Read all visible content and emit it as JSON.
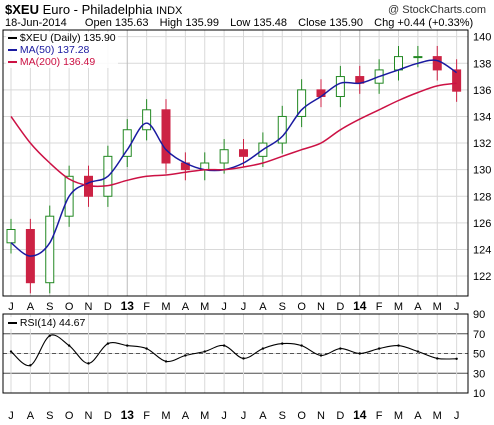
{
  "header": {
    "symbol": "$XEU",
    "name": "Euro - Philadelphia",
    "exchange": "INDX",
    "watermark": "@ StockCharts.com",
    "date": "18-Jun-2014",
    "open_label": "Open",
    "open": "135.63",
    "high_label": "High",
    "high": "135.99",
    "low_label": "Low",
    "low": "135.48",
    "close_label": "Close",
    "close": "135.90",
    "chg_label": "Chg",
    "chg": "+0.44 (+0.33%)"
  },
  "legend": {
    "main": "$XEU (Daily) 135.90",
    "ma50": "MA(50) 137.28",
    "ma200": "MA(200) 136.49",
    "rsi": "RSI(14) 44.67"
  },
  "colors": {
    "up": "#228822",
    "down": "#cc2244",
    "ma50": "#1a1aa0",
    "ma200": "#cc1144",
    "rsi": "#000000",
    "grid": "#d9d9d9",
    "frame": "#000000"
  },
  "chart_data": [
    {
      "type": "candlestick",
      "title": "$XEU (Daily) 135.90",
      "x": [
        "2012-07-01",
        "2012-08-01",
        "2012-09-01",
        "2012-10-01",
        "2012-11-01",
        "2012-12-01",
        "2013-01-01",
        "2013-02-01",
        "2013-03-01",
        "2013-04-01",
        "2013-05-01",
        "2013-06-01",
        "2013-07-01",
        "2013-08-01",
        "2013-09-01",
        "2013-10-01",
        "2013-11-01",
        "2013-12-01",
        "2014-01-01",
        "2014-02-01",
        "2014-03-01",
        "2014-04-01",
        "2014-05-01",
        "2014-06-01"
      ],
      "x_tick_labels": [
        "J",
        "A",
        "S",
        "O",
        "N",
        "D",
        "13",
        "F",
        "M",
        "A",
        "M",
        "J",
        "J",
        "A",
        "S",
        "O",
        "N",
        "D",
        "14",
        "F",
        "M",
        "A",
        "M",
        "J"
      ],
      "close": [
        125.5,
        121.5,
        126.5,
        129.5,
        128.0,
        131.0,
        133.0,
        134.5,
        130.5,
        130.0,
        130.5,
        131.5,
        131.0,
        132.0,
        134.0,
        136.0,
        135.5,
        137.0,
        136.5,
        137.5,
        138.5,
        138.5,
        137.5,
        135.9
      ],
      "ylim": [
        120.5,
        140.5
      ],
      "y_ticks": [
        122,
        124,
        126,
        128,
        130,
        132,
        134,
        136,
        138,
        140
      ],
      "series": [
        {
          "name": "MA(50) 137.28",
          "values": [
            124.5,
            123.5,
            124.5,
            128.0,
            129.0,
            129.5,
            131.5,
            133.5,
            131.5,
            130.5,
            130.0,
            130.0,
            130.5,
            131.5,
            132.5,
            134.5,
            135.5,
            136.5,
            136.5,
            137.0,
            137.5,
            138.0,
            138.2,
            137.3
          ]
        },
        {
          "name": "MA(200) 136.49",
          "values": [
            134.0,
            132.0,
            130.5,
            129.3,
            128.8,
            128.8,
            129.2,
            129.5,
            129.6,
            129.8,
            130.0,
            130.0,
            130.2,
            130.5,
            131.0,
            131.5,
            132.0,
            133.0,
            133.8,
            134.5,
            135.2,
            135.8,
            136.3,
            136.5
          ]
        }
      ],
      "grid": true
    },
    {
      "type": "line",
      "title": "RSI(14) 44.67",
      "x": [
        "2012-07-01",
        "2012-08-01",
        "2012-09-01",
        "2012-10-01",
        "2012-11-01",
        "2012-12-01",
        "2013-01-01",
        "2013-02-01",
        "2013-03-01",
        "2013-04-01",
        "2013-05-01",
        "2013-06-01",
        "2013-07-01",
        "2013-08-01",
        "2013-09-01",
        "2013-10-01",
        "2013-11-01",
        "2013-12-01",
        "2014-01-01",
        "2014-02-01",
        "2014-03-01",
        "2014-04-01",
        "2014-05-01",
        "2014-06-01"
      ],
      "x_tick_labels": [
        "J",
        "A",
        "S",
        "O",
        "N",
        "D",
        "13",
        "F",
        "M",
        "A",
        "M",
        "J",
        "J",
        "A",
        "S",
        "O",
        "N",
        "D",
        "14",
        "F",
        "M",
        "A",
        "M",
        "J"
      ],
      "values": [
        52,
        38,
        68,
        58,
        40,
        60,
        58,
        55,
        42,
        48,
        52,
        58,
        45,
        55,
        60,
        58,
        48,
        55,
        50,
        55,
        58,
        52,
        45,
        44.67
      ],
      "ylim": [
        10,
        90
      ],
      "y_ticks": [
        10,
        30,
        50,
        70,
        90
      ],
      "reference_lines": [
        30,
        50,
        70
      ],
      "grid": true
    }
  ]
}
